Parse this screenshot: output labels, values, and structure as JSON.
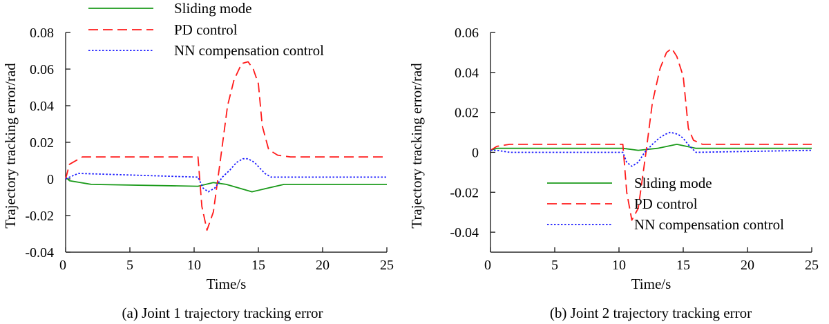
{
  "chart_data": [
    {
      "type": "line",
      "caption": "(a) Joint 1 trajectory tracking error",
      "xlabel": "Time/s",
      "ylabel": "Trajectory tracking error/rad",
      "xlim": [
        0,
        25
      ],
      "ylim": [
        -0.04,
        0.08
      ],
      "xticks": [
        0,
        5,
        10,
        15,
        20,
        25
      ],
      "xtick_labels": [
        "0",
        "5",
        "10",
        "15",
        "20",
        "25"
      ],
      "yticks": [
        -0.04,
        -0.02,
        0,
        0.02,
        0.04,
        0.06,
        0.08
      ],
      "ytick_labels": [
        "-0.04",
        "-0.02",
        "0",
        "0.02",
        "0.04",
        "0.06",
        "0.08"
      ],
      "grid": false,
      "legend_position": "top",
      "series": [
        {
          "name": "Sliding mode",
          "color": "#1a9a1a",
          "style": "solid",
          "x": [
            0,
            0.3,
            2,
            10.3,
            11.5,
            12.5,
            14.5,
            17,
            25
          ],
          "y": [
            0.001,
            -0.001,
            -0.003,
            -0.004,
            -0.002,
            -0.003,
            -0.007,
            -0.003,
            -0.003
          ]
        },
        {
          "name": "PD control",
          "color": "#ff1a1a",
          "style": "dashed",
          "x": [
            0,
            0.3,
            1.3,
            10.3,
            10.6,
            11.0,
            11.5,
            12.0,
            12.6,
            13.1,
            13.7,
            14.2,
            14.6,
            15.0,
            15.3,
            15.8,
            16.5,
            17.5,
            25
          ],
          "y": [
            0,
            0.008,
            0.012,
            0.012,
            -0.015,
            -0.028,
            -0.018,
            0.008,
            0.04,
            0.054,
            0.063,
            0.064,
            0.06,
            0.052,
            0.029,
            0.016,
            0.013,
            0.012,
            0.012
          ]
        },
        {
          "name": "NN compensation control",
          "color": "#1a1aff",
          "style": "dotted",
          "x": [
            0,
            0.3,
            1,
            10.3,
            10.7,
            11.1,
            11.6,
            12.2,
            12.8,
            13.3,
            13.8,
            14.2,
            14.7,
            15.1,
            15.5,
            16,
            25
          ],
          "y": [
            0,
            0.001,
            0.003,
            0.001,
            -0.005,
            -0.007,
            -0.005,
            0.001,
            0.005,
            0.009,
            0.011,
            0.011,
            0.009,
            0.006,
            0.003,
            0.001,
            0.001
          ]
        }
      ]
    },
    {
      "type": "line",
      "caption": "(b) Joint 2 trajectory tracking error",
      "xlabel": "Time/s",
      "ylabel": "Trajectory tracking error/rad",
      "xlim": [
        0,
        25
      ],
      "ylim": [
        -0.05,
        0.06
      ],
      "xticks": [
        0,
        5,
        10,
        15,
        20,
        25
      ],
      "xtick_labels": [
        "0",
        "5",
        "10",
        "15",
        "20",
        "25"
      ],
      "yticks": [
        -0.04,
        -0.02,
        0,
        0.02,
        0.04,
        0.06
      ],
      "ytick_labels": [
        "-0.04",
        "-0.02",
        "0",
        "0.02",
        "0.04",
        "0.06"
      ],
      "grid": false,
      "legend_position": "lower-right",
      "series": [
        {
          "name": "Sliding mode",
          "color": "#1a9a1a",
          "style": "solid",
          "x": [
            0,
            0.5,
            2,
            10.3,
            11.5,
            13,
            14.5,
            16,
            25
          ],
          "y": [
            0.001,
            0.002,
            0.002,
            0.002,
            0.001,
            0.002,
            0.004,
            0.002,
            0.002
          ]
        },
        {
          "name": "PD control",
          "color": "#ff1a1a",
          "style": "dashed",
          "x": [
            0,
            0.5,
            1.5,
            10.3,
            10.6,
            11.0,
            11.5,
            12.1,
            12.6,
            13.2,
            13.7,
            14.1,
            14.5,
            15.0,
            15.4,
            15.8,
            16.5,
            25
          ],
          "y": [
            0.001,
            0.003,
            0.004,
            0.004,
            -0.02,
            -0.034,
            -0.028,
            0,
            0.025,
            0.042,
            0.05,
            0.052,
            0.048,
            0.038,
            0.012,
            0.006,
            0.004,
            0.004
          ]
        },
        {
          "name": "NN compensation control",
          "color": "#1a1aff",
          "style": "dotted",
          "x": [
            0,
            0.5,
            1.5,
            10.3,
            10.6,
            11.0,
            11.5,
            12.0,
            12.6,
            13.1,
            13.6,
            14.0,
            14.6,
            15.0,
            15.5,
            16.0,
            25
          ],
          "y": [
            0.001,
            0.001,
            0,
            0,
            -0.005,
            -0.007,
            -0.005,
            0,
            0.004,
            0.007,
            0.009,
            0.01,
            0.009,
            0.007,
            0.003,
            0,
            0.001
          ]
        }
      ]
    }
  ]
}
